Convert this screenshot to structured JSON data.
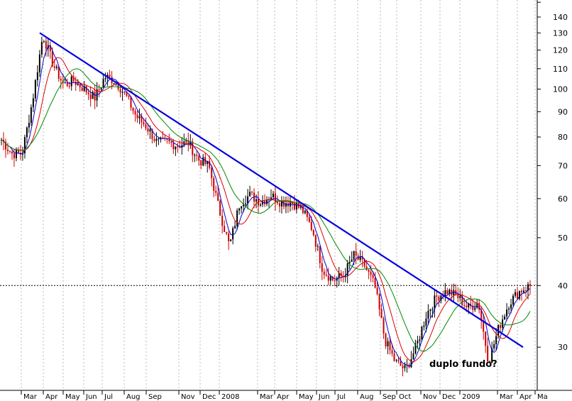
{
  "chart_data": {
    "type": "line",
    "subtype": "candlestick-with-moving-averages",
    "y_scale": "log",
    "ylim": [
      22,
      155
    ],
    "yticks": [
      30,
      40,
      50,
      60,
      70,
      80,
      90,
      100,
      110,
      120,
      130,
      140
    ],
    "x_ticks": [
      "Mar",
      "Apr",
      "May",
      "Jun",
      "Jul",
      "Aug",
      "Sep",
      "Nov",
      "Dec",
      "2008",
      "Mar",
      "Apr",
      "May",
      "Jun",
      "Jul",
      "Aug",
      "Sep",
      "Oct",
      "Nov",
      "Dec",
      "2009",
      "Mar",
      "Apr",
      "Ma"
    ],
    "grid": "vertical dotted lines at each month",
    "reference_line": {
      "value": 40,
      "style": "dashed"
    },
    "annotation": "duplo fundo?",
    "colors": {
      "trendline": "#0000e0",
      "ma_short": "#0000cc",
      "ma_medium": "#dd0000",
      "ma_long": "#008800",
      "candles": "#000000",
      "candles_down": "#cc0000"
    },
    "price_path": [
      [
        "Feb",
        79
      ],
      [
        "Mar",
        74
      ],
      [
        "Mar",
        74
      ],
      [
        "Mar",
        95
      ],
      [
        "Apr",
        129
      ],
      [
        "Apr",
        112
      ],
      [
        "May",
        102
      ],
      [
        "May",
        104
      ],
      [
        "Jun",
        100
      ],
      [
        "Jun",
        96
      ],
      [
        "Jul",
        106
      ],
      [
        "Jul",
        104
      ],
      [
        "Aug",
        97
      ],
      [
        "Aug",
        88
      ],
      [
        "Sep",
        84
      ],
      [
        "Sep",
        78
      ],
      [
        "Nov",
        78
      ],
      [
        "Nov",
        77
      ],
      [
        "Dec",
        78
      ],
      [
        "Dec",
        72
      ],
      [
        "2008",
        70
      ],
      [
        "2008",
        57
      ],
      [
        "2008",
        48
      ],
      [
        "2008",
        59
      ],
      [
        "Mar",
        61
      ],
      [
        "Mar",
        59
      ],
      [
        "Apr",
        61
      ],
      [
        "Apr",
        59
      ],
      [
        "May",
        59
      ],
      [
        "May",
        57
      ],
      [
        "Jun",
        52
      ],
      [
        "Jun",
        43
      ],
      [
        "Jul",
        41
      ],
      [
        "Jul",
        42
      ],
      [
        "Aug",
        46
      ],
      [
        "Aug",
        44
      ],
      [
        "Sep",
        40
      ],
      [
        "Sep",
        31
      ],
      [
        "Oct",
        28
      ],
      [
        "Oct",
        27
      ],
      [
        "Nov",
        30
      ],
      [
        "Nov",
        35
      ],
      [
        "Dec",
        38
      ],
      [
        "Dec",
        39
      ],
      [
        "2009",
        38
      ],
      [
        "2009",
        36
      ],
      [
        "2009",
        37
      ],
      [
        "Mar",
        28
      ],
      [
        "Mar",
        33
      ],
      [
        "Apr",
        37
      ],
      [
        "Apr",
        39
      ],
      [
        "Ma",
        40
      ]
    ],
    "trendline": {
      "from": [
        "Apr",
        130
      ],
      "to": [
        "Apr",
        30
      ]
    }
  }
}
